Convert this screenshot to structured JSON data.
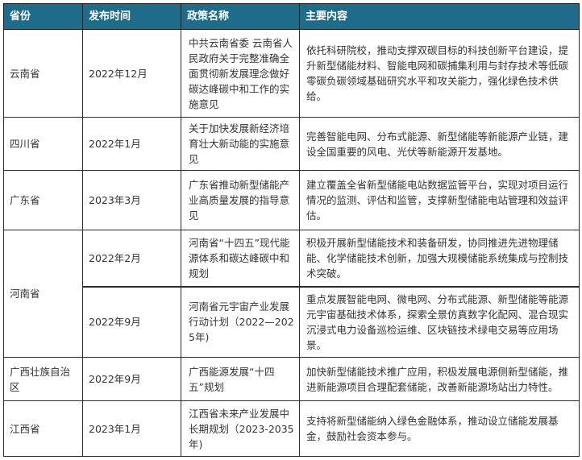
{
  "header": {
    "province": "省份",
    "date": "发布时间",
    "policy": "政策名称",
    "content": "主要内容"
  },
  "header_color": "#1f6c8a",
  "rows": [
    {
      "province": "云南省",
      "date": "2022年12月",
      "policy": "中共云南省委 云南省人民政府关于完整准确全面贯彻新发展理念做好碳达峰碳中和工作的实施意见",
      "content": "依托科研院校，推动支撑双碳目标的科技创新平台建设，提升新型储能材料、智能电网和碳捕集利用与封存技术等低碳零碳负碳领域基础研究水平和攻关能力，强化绿色技术供给。"
    },
    {
      "province": "四川省",
      "date": "2022年1月",
      "policy": "关于加快发展新经济培育壮大新动能的实施意见",
      "content": "完善智能电网、分布式能源、新型储能等新能源产业链，建设全国重要的风电、光伏等新能源开发基地。"
    },
    {
      "province": "广东省",
      "date": "2023年3月",
      "policy": "广东省推动新型储能产业高质量发展的指导意见",
      "content": "建立覆盖全省新型储能电站数据监管平台，实现对项目运行情况的监测、评估和监管，支撑新型储能电站管理和效益评估。"
    },
    {
      "province": "河南省",
      "date": "2022年2月",
      "policy": "河南省“十四五”现代能源体系和碳达峰碳中和规划",
      "content": "积极开展新型储能技术和装备研发，协同推进先进物理储能、化学储能技术创新，加强大规模储能系统集成与控制技术突破。"
    },
    {
      "province": "",
      "date": "2022年9月",
      "policy": "河南省元宇宙产业发展行动计划（2022—2025年)",
      "content": "重点发展智能电网、微电网、分布式能源、新型储能等能源元宇宙基础技术体系，探索全景仿真数字化配网、混合现实沉浸式电力设备巡检运维、区块链技术绿电交易等应用场景。"
    },
    {
      "province": "广西壮族自治区",
      "date": "2022年9月",
      "policy": "广西能源发展“十四五”规划",
      "content": "加快新型储能技术推广应用，积极发展电源侧新型储能，推进新能源项目合理配套储能，改善新能源场站出力特性。"
    },
    {
      "province": "江西省",
      "date": "2023年1月",
      "policy": "江西省未来产业发展中长期规划（2023-2035年)",
      "content": "支持将新型储能纳入绿色金融体系，推动设立储能发展基金，鼓励社会资本参与。"
    }
  ]
}
